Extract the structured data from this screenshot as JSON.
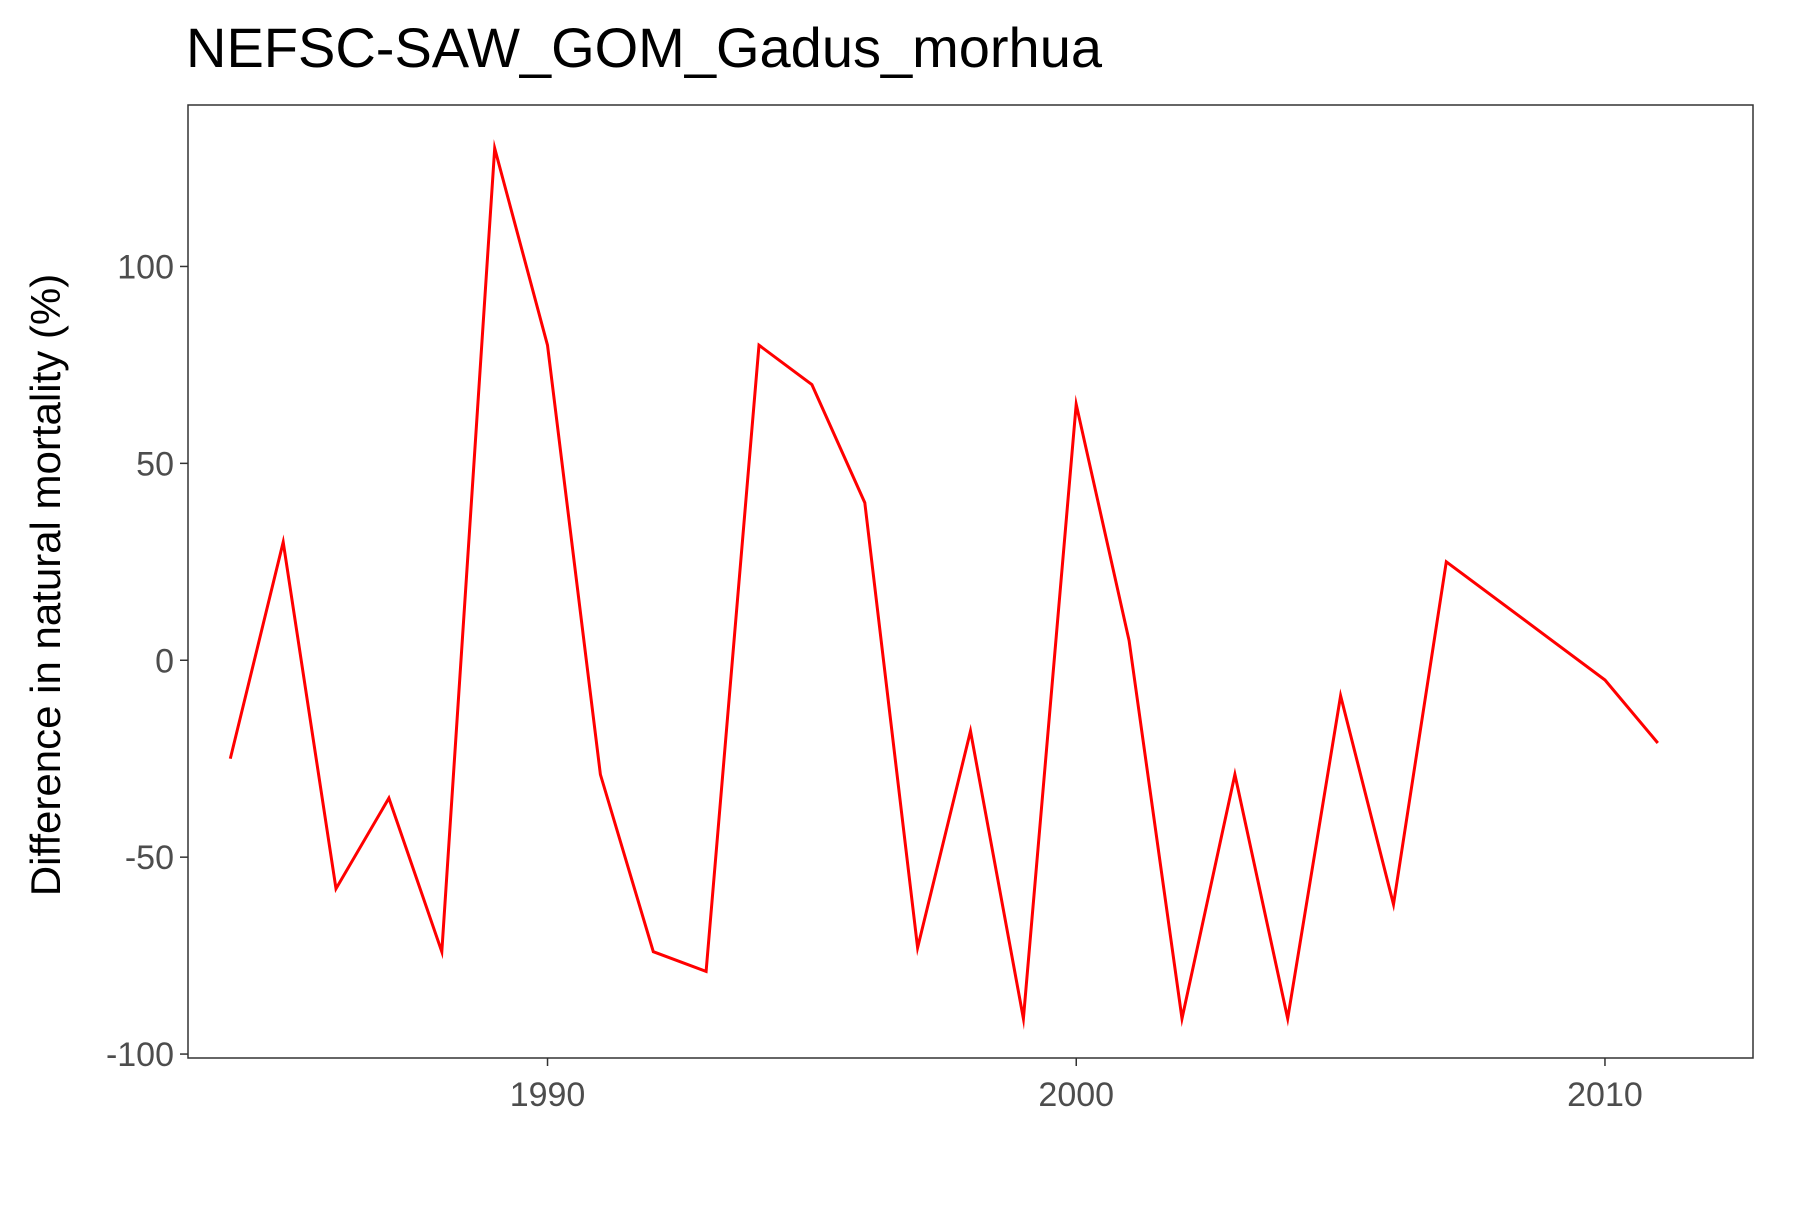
{
  "chart_data": {
    "type": "line",
    "title": "NEFSC-SAW_GOM_Gadus_morhua",
    "xlabel": "",
    "ylabel": "Difference in natural mortality (%)",
    "xlim": [
      1983.2,
      2012.8
    ],
    "ylim": [
      -101,
      141
    ],
    "x_ticks": [
      1990,
      2000,
      2010
    ],
    "y_ticks": [
      -100,
      -50,
      0,
      50,
      100
    ],
    "grid": false,
    "line_color": "#ff0000",
    "series": [
      {
        "x": [
          1984,
          1985,
          1986,
          1987,
          1988,
          1989,
          1990,
          1991,
          1992,
          1993,
          1994,
          1995,
          1996,
          1997,
          1998,
          1999,
          2000,
          2001,
          2002,
          2003,
          2004,
          2005,
          2006,
          2007,
          2010,
          2011
        ],
        "values": [
          -25,
          30,
          -58,
          -35,
          -74,
          130,
          80,
          -29,
          -74,
          -79,
          80,
          70,
          40,
          -73,
          -18,
          -91,
          65,
          5,
          -91,
          -29,
          -91,
          -9,
          -62,
          25,
          -5,
          -21
        ]
      }
    ]
  }
}
